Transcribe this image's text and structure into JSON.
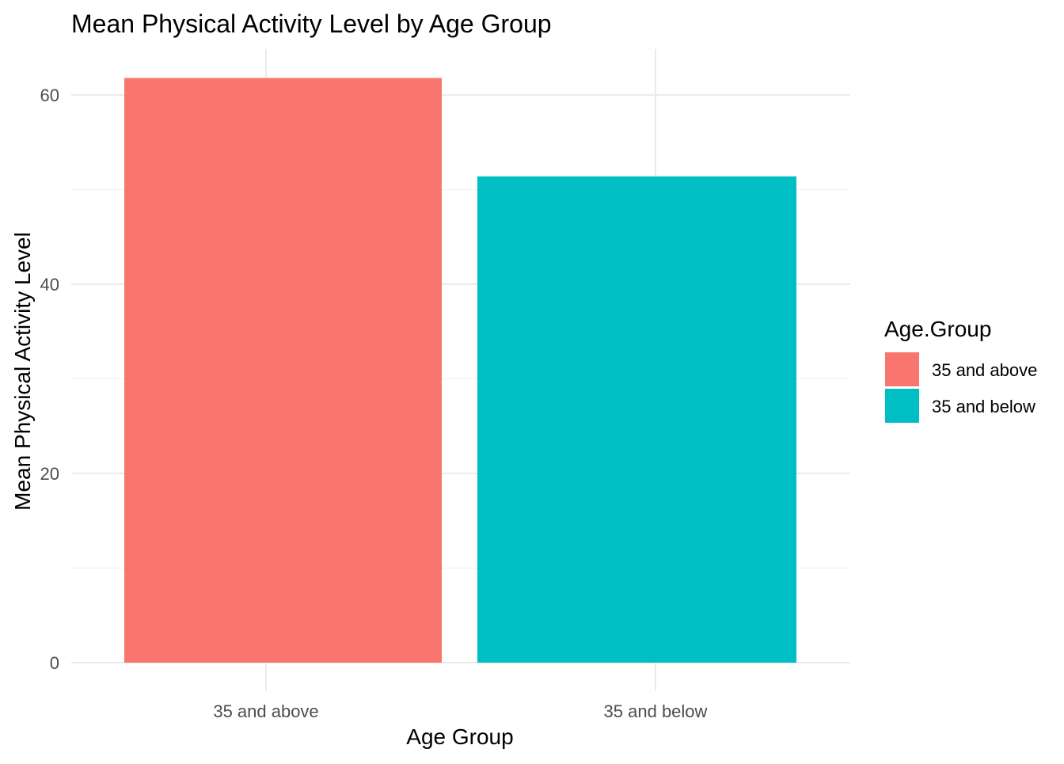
{
  "chart_data": {
    "type": "bar",
    "title": "Mean Physical Activity Level by Age Group",
    "xlabel": "Age Group",
    "ylabel": "Mean Physical Activity Level",
    "categories": [
      "35 and above",
      "35 and below"
    ],
    "values": [
      61.8,
      51.4
    ],
    "colors": [
      "#F8766D",
      "#00BFC4"
    ],
    "ylim": [
      0,
      64.7
    ],
    "yticks": [
      0,
      20,
      40,
      60
    ],
    "grid": true,
    "legend": {
      "title": "Age.Group",
      "position": "right",
      "items": [
        {
          "label": "35 and above",
          "color": "#F8766D"
        },
        {
          "label": "35 and below",
          "color": "#00BFC4"
        }
      ]
    }
  }
}
